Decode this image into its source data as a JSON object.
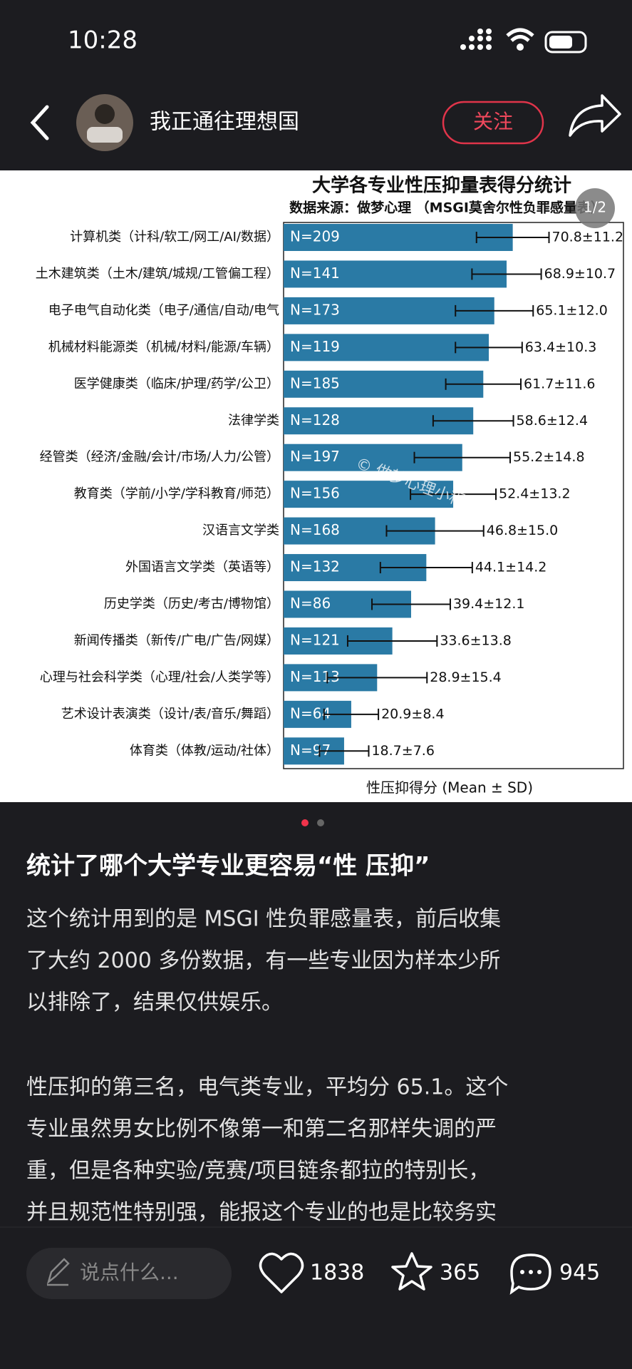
{
  "status_bar": {
    "time": "10:28"
  },
  "header": {
    "author": "我正通往理想国",
    "follow": "关注"
  },
  "chart_data": {
    "type": "bar",
    "orientation": "horizontal",
    "title": "大学各专业性压抑量表得分统计",
    "subtitle": "数据来源：做梦心理 （MSGI莫舍尔性负罪感量表）",
    "x_label": "性压抑得分 (Mean ± SD)",
    "categories": [
      "计算机类（计科/软工/网工/AI/数据）",
      "土木建筑类（土木/建筑/城规/工管偏工程）",
      "电子电气自动化类（电子/通信/自动/电气",
      "机械材料能源类（机械/材料/能源/车辆）",
      "医学健康类（临床/护理/药学/公卫）",
      "法律学类",
      "经管类（经济/金融/会计/市场/人力/公管）",
      "教育类（学前/小学/学科教育/师范）",
      "汉语言文学类",
      "外国语言文学类（英语等）",
      "历史学类（历史/考古/博物馆）",
      "新闻传播类（新传/广电/广告/网媒）",
      "心理与社会科学类（心理/社会/人类学等）",
      "艺术设计表演类（设计/表/音乐/舞蹈）",
      "体育类（体教/运动/社体）"
    ],
    "values": [
      70.8,
      68.9,
      65.1,
      63.4,
      61.7,
      58.6,
      55.2,
      52.4,
      46.8,
      44.1,
      39.4,
      33.6,
      28.9,
      20.9,
      18.7
    ],
    "errors": [
      11.2,
      10.7,
      12.0,
      10.3,
      11.6,
      12.4,
      14.8,
      13.2,
      15.0,
      14.2,
      12.1,
      13.8,
      15.4,
      8.4,
      7.6
    ],
    "value_labels": [
      "70.8±11.2",
      "68.9±10.7",
      "65.1±12.0",
      "63.4±10.3",
      "61.7±11.6",
      "58.6±12.4",
      "55.2±14.8",
      "52.4±13.2",
      "46.8±15.0",
      "44.1±14.2",
      "39.4±12.1",
      "33.6±13.8",
      "28.9±15.4",
      "20.9±8.4",
      "18.7±7.6"
    ],
    "n_labels": [
      "N=209",
      "N=141",
      "N=173",
      "N=119",
      "N=185",
      "N=128",
      "N=197",
      "N=156",
      "N=168",
      "N=132",
      "N=86",
      "N=121",
      "N=113",
      "N=64",
      "N=97"
    ],
    "color": "#2a7aa5",
    "xlim": [
      0,
      105
    ],
    "watermark": "© 做梦心理小程序"
  },
  "image_counter": "1/2",
  "post": {
    "title": "统计了哪个大学专业更容易“性 压抑”",
    "paragraphs": [
      [
        "这个统计用到的是 MSGI 性负罪感量表，前后收集",
        "了大约 2000 多份数据，有一些专业因为样本少所",
        "以排除了，结果仅供娱乐。"
      ],
      [
        "性压抑的第三名，电气类专业，平均分 65.1。这个",
        "专业虽然男女比例不像第一和第二名那样失调的严",
        "重，但是各种实验/竞赛/项目链条都拉的特别长，",
        "并且规范性特别强，能报这个专业的也是比较务实"
      ]
    ]
  },
  "bottom_bar": {
    "comment_placeholder": "说点什么...",
    "likes": 1838,
    "favorites": 365,
    "comments": 945
  }
}
